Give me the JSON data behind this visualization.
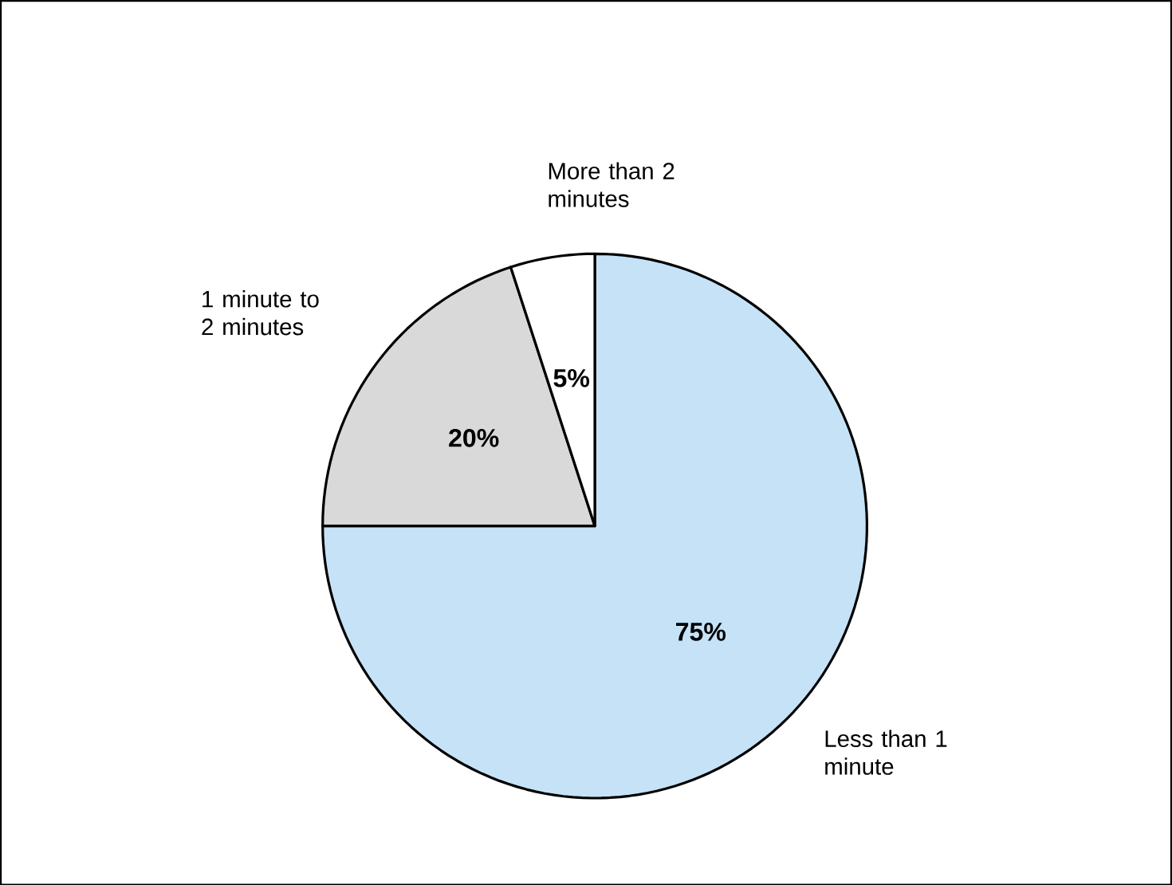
{
  "chart_data": {
    "type": "pie",
    "categories": [
      "Less than 1 minute",
      "1 minute to 2 minutes",
      "More than 2 minutes"
    ],
    "values": [
      75,
      20,
      5
    ],
    "colors": [
      "#c6e2f7",
      "#d9d9d9",
      "#ffffff"
    ],
    "value_labels": [
      "75%",
      "20%",
      "5%"
    ]
  }
}
